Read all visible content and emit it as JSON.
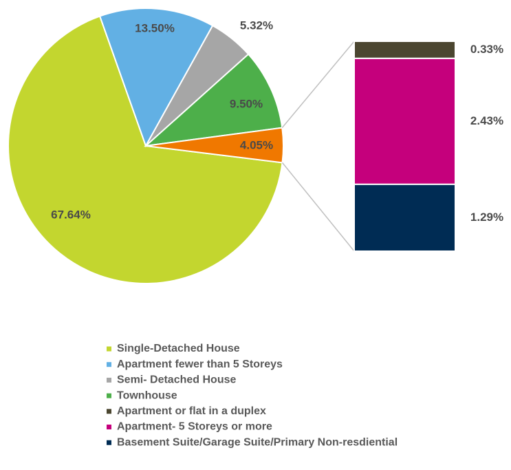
{
  "chart_data": {
    "type": "pie-of-bar",
    "pie": {
      "categories": [
        "Single-Detached House",
        "Apartment fewer than 5 Storeys",
        "Semi- Detached House",
        "Townhouse",
        null
      ],
      "values": [
        67.64,
        13.5,
        5.32,
        9.5,
        4.05
      ],
      "value_labels": [
        "67.64%",
        "13.50%",
        "5.32%",
        "9.50%",
        "4.05%"
      ],
      "colors": [
        "#c3d62f",
        "#62b0e4",
        "#a6a6a6",
        "#4daf4a",
        "#f07800"
      ]
    },
    "bar": {
      "categories": [
        "Apartment or flat in a duplex",
        "Apartment- 5 Storeys or more",
        "Basement Suite/Garage Suite/Primary Non-resdiential"
      ],
      "values": [
        0.33,
        2.43,
        1.29
      ],
      "value_labels": [
        "0.33%",
        "2.43%",
        "1.29%"
      ],
      "colors": [
        "#4b4630",
        "#c5007c",
        "#002c54"
      ]
    }
  }
}
